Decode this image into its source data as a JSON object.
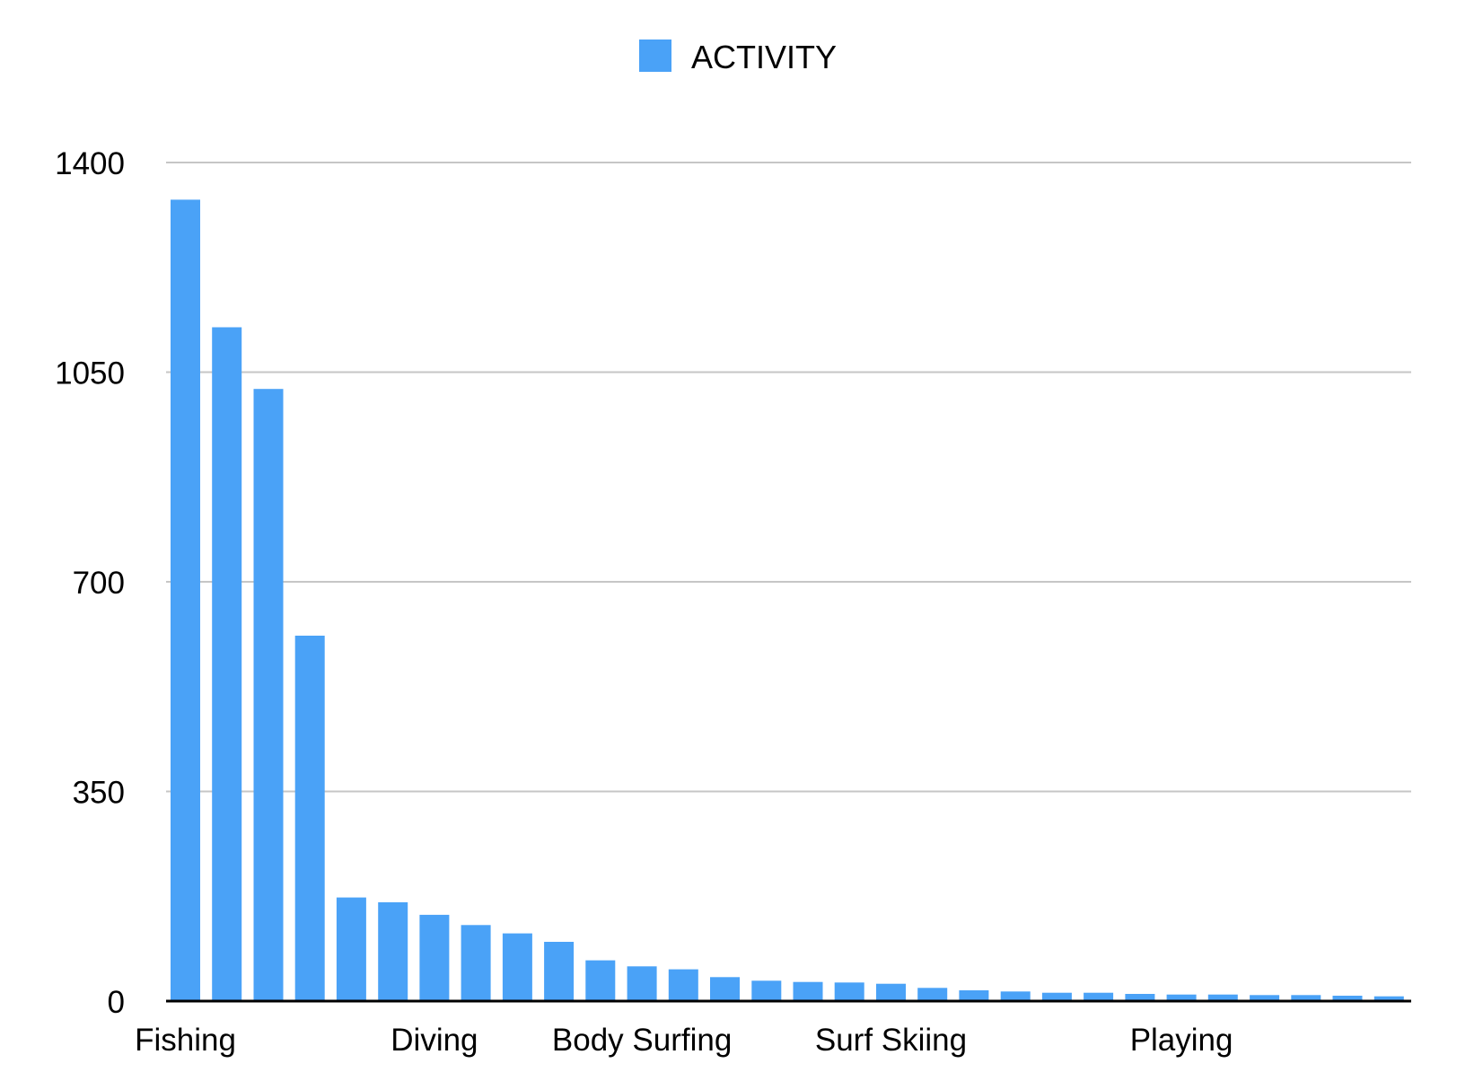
{
  "chart_data": {
    "type": "bar",
    "categories": [
      "Fishing",
      "",
      "",
      "",
      "",
      "",
      "Diving",
      "",
      "",
      "",
      "",
      "Body Surfing",
      "",
      "",
      "",
      "",
      "",
      "Surf Skiing",
      "",
      "",
      "",
      "",
      "",
      "",
      "Playing",
      "",
      "",
      "",
      "",
      ""
    ],
    "series": [
      {
        "name": "ACTIVITY",
        "color": "#4aa2f7",
        "values": [
          1338,
          1125,
          1022,
          610,
          173,
          165,
          144,
          127,
          113,
          99,
          68,
          58,
          53,
          40,
          34,
          32,
          31,
          29,
          22,
          18,
          16,
          14,
          14,
          12,
          11,
          11,
          10,
          10,
          9,
          8
        ]
      }
    ],
    "yticks": [
      "0",
      "350",
      "700",
      "1050",
      "1400"
    ],
    "ylim": [
      0,
      1400
    ],
    "grid": true,
    "legend_position": "top-center",
    "xlabel": "",
    "ylabel": "",
    "title": ""
  }
}
